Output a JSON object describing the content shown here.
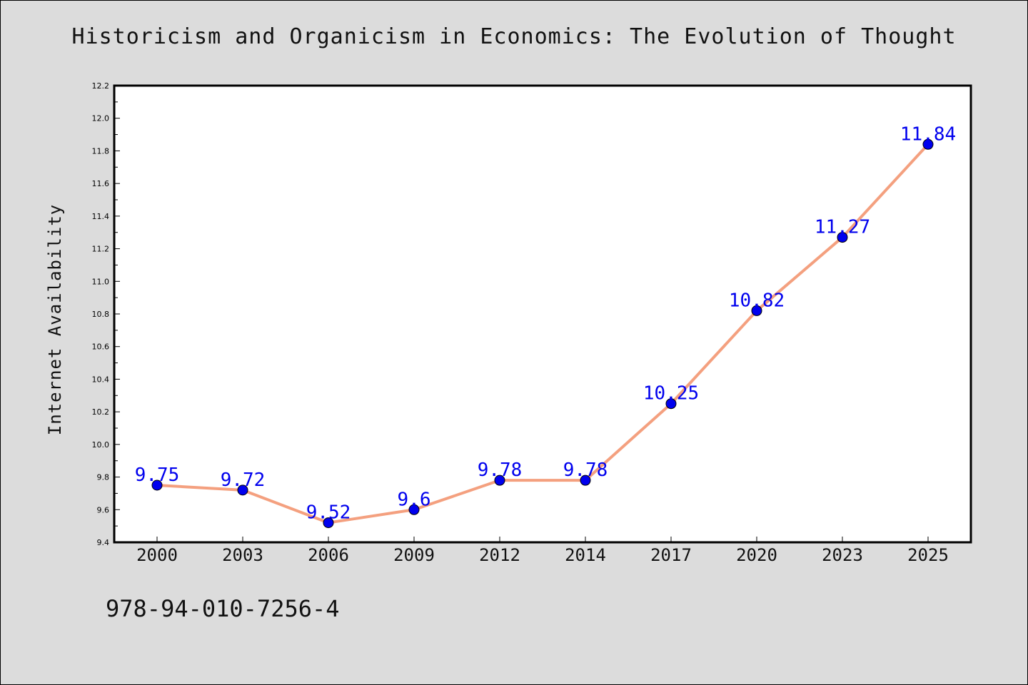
{
  "chart_data": {
    "type": "line",
    "title": "Historicism and Organicism in Economics: The Evolution of Thought",
    "ylabel": "Internet Availability",
    "xlabel": "",
    "categories": [
      "2000",
      "2003",
      "2006",
      "2009",
      "2012",
      "2014",
      "2017",
      "2020",
      "2023",
      "2025"
    ],
    "series": [
      {
        "values": [
          9.75,
          9.72,
          9.52,
          9.6,
          9.78,
          9.78,
          10.25,
          10.82,
          11.27,
          11.84
        ],
        "data_labels": [
          "9.75",
          "9.72",
          "9.52",
          "9.6",
          "9.78",
          "9.78",
          "10.25",
          "10.82",
          "11.27",
          "11.84"
        ]
      }
    ],
    "ylim": [
      9.4,
      12.2
    ],
    "yticks": [
      "9.4",
      "9.6",
      "9.8",
      "10.0",
      "10.2",
      "10.4",
      "10.6",
      "10.8",
      "11.0",
      "11.2",
      "11.4",
      "11.6",
      "11.8",
      "12.0",
      "12.2"
    ],
    "grid": false,
    "legend": "none",
    "colors": {
      "line": "#f4a07f",
      "marker": "#0000ee",
      "label": "#0000ee",
      "background": "#dcdcdc",
      "plot_bg": "#ffffff"
    }
  },
  "footer": {
    "code": "978-94-010-7256-4"
  }
}
